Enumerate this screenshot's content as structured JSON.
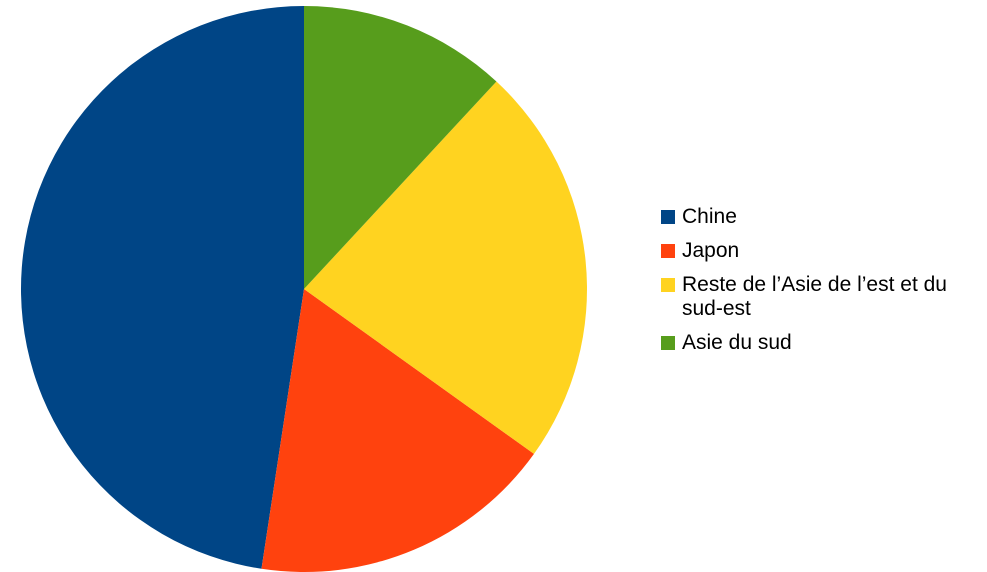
{
  "chart_data": {
    "type": "pie",
    "title": "",
    "slices": [
      {
        "label": "Chine",
        "value": 47.6,
        "color": "#004586"
      },
      {
        "label": "Japon",
        "value": 17.5,
        "color": "#ff420e"
      },
      {
        "label": "Reste de l’Asie de l’est et du sud-est",
        "value": 23.0,
        "color": "#ffd320"
      },
      {
        "label": "Asie du sud",
        "value": 11.9,
        "color": "#579d1c"
      }
    ],
    "legend_position": "right"
  }
}
